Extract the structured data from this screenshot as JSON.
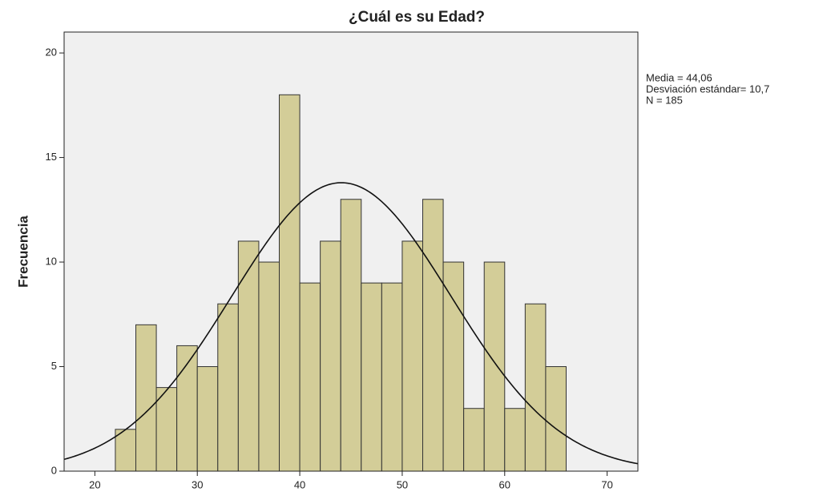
{
  "chart_data": {
    "type": "histogram",
    "title": "¿Cuál es su Edad?",
    "y_label": "Frecuencia",
    "bins": [
      22,
      24,
      26,
      28,
      30,
      32,
      34,
      36,
      38,
      40,
      42,
      44,
      46,
      48,
      50,
      52,
      54,
      56,
      58,
      60,
      62,
      64,
      66
    ],
    "values": [
      2,
      7,
      4,
      6,
      5,
      8,
      11,
      10,
      18,
      9,
      11,
      13,
      9,
      9,
      11,
      13,
      10,
      3,
      10,
      3,
      8,
      5
    ],
    "color": "#d3cd98",
    "xlim": [
      17,
      73
    ],
    "xticks": [
      20,
      30,
      40,
      50,
      60,
      70
    ],
    "ylim": [
      0,
      21
    ],
    "yticks": [
      0,
      5,
      10,
      15,
      20
    ],
    "mean": {
      "value": 44.06,
      "label": "Media = 44,06"
    },
    "sd": {
      "value": 10.7,
      "label": "Desviación estándar= 10,7"
    },
    "n": {
      "value": 185,
      "label": "N = 185"
    },
    "normal_curve": true
  }
}
